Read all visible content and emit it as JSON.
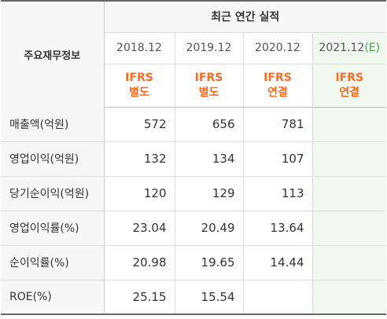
{
  "table": {
    "label_header": "주요재무정보",
    "period_header": "최근 연간 실적",
    "years": [
      {
        "label": "2018.12",
        "suffix": "",
        "basis_line1": "IFRS",
        "basis_line2": "별도"
      },
      {
        "label": "2019.12",
        "suffix": "",
        "basis_line1": "IFRS",
        "basis_line2": "별도"
      },
      {
        "label": "2020.12",
        "suffix": "",
        "basis_line1": "IFRS",
        "basis_line2": "연결"
      },
      {
        "label": "2021.12",
        "suffix": "(E)",
        "basis_line1": "IFRS",
        "basis_line2": "연결"
      }
    ],
    "rows": [
      {
        "label": "매출액(억원)",
        "values": [
          "572",
          "656",
          "781",
          ""
        ]
      },
      {
        "label": "영업이익(억원)",
        "values": [
          "132",
          "134",
          "107",
          ""
        ]
      },
      {
        "label": "당기순이익(억원)",
        "values": [
          "120",
          "129",
          "113",
          ""
        ]
      },
      {
        "label": "영업이익률(%)",
        "values": [
          "23.04",
          "20.49",
          "13.64",
          ""
        ]
      },
      {
        "label": "순이익률(%)",
        "values": [
          "20.98",
          "19.65",
          "14.44",
          ""
        ]
      },
      {
        "label": "ROE(%)",
        "values": [
          "25.15",
          "15.54",
          "",
          ""
        ]
      }
    ]
  },
  "colors": {
    "basis_text": "#ff6a1f",
    "estimate_bg": "#f1f8f0",
    "estimate_accent": "#46a046",
    "header_bg": "#f7f7f7"
  }
}
